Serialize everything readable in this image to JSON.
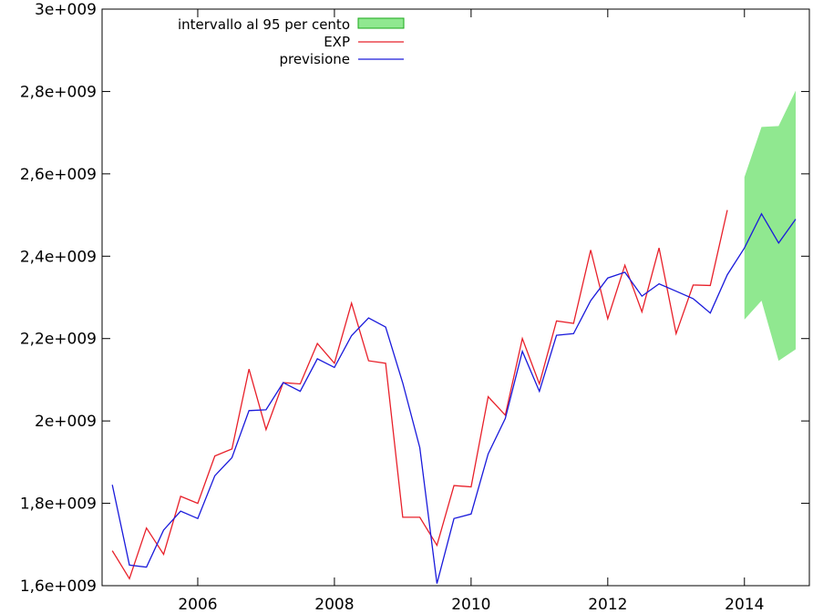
{
  "chart_data": {
    "type": "line",
    "title": "",
    "xlabel": "",
    "ylabel": "",
    "xlim": [
      2004.6,
      2014.95
    ],
    "ylim": [
      1600000000,
      3000000000
    ],
    "x_ticks": [
      2006,
      2008,
      2010,
      2012,
      2014
    ],
    "x_tick_labels": [
      "2006",
      "2008",
      "2010",
      "2012",
      "2014"
    ],
    "y_ticks": [
      1600000000,
      1800000000,
      2000000000,
      2200000000,
      2400000000,
      2600000000,
      2800000000,
      3000000000
    ],
    "y_tick_labels": [
      "1,6e+009",
      "1,8e+009",
      "2e+009",
      "2,2e+009",
      "2,4e+009",
      "2,6e+009",
      "2,8e+009",
      "3e+009"
    ],
    "grid": false,
    "legend_position": "top-left",
    "legend": {
      "interval_label": "intervallo al 95 per cento",
      "exp_label": "EXP",
      "forecast_label": "previsione"
    },
    "colors": {
      "exp": "#e8202a",
      "forecast": "#1a1adb",
      "interval_fill": "#90e890",
      "interval_stroke": "#1aa81a"
    },
    "series": [
      {
        "name": "EXP",
        "x": [
          2004.75,
          2005.0,
          2005.25,
          2005.5,
          2005.75,
          2006.0,
          2006.25,
          2006.5,
          2006.75,
          2007.0,
          2007.25,
          2007.5,
          2007.75,
          2008.0,
          2008.25,
          2008.5,
          2008.75,
          2009.0,
          2009.25,
          2009.5,
          2009.75,
          2010.0,
          2010.25,
          2010.5,
          2010.75,
          2011.0,
          2011.25,
          2011.5,
          2011.75,
          2012.0,
          2012.25,
          2012.5,
          2012.75,
          2013.0,
          2013.25,
          2013.5,
          2013.75
        ],
        "y": [
          1685000000,
          1617000000,
          1740000000,
          1676000000,
          1817000000,
          1800000000,
          1915000000,
          1932000000,
          2126000000,
          1979000000,
          2093000000,
          2090000000,
          2188000000,
          2140000000,
          2286000000,
          2146000000,
          2140000000,
          1766000000,
          1766000000,
          1698000000,
          1843000000,
          1840000000,
          2059000000,
          2014000000,
          2200000000,
          2090000000,
          2243000000,
          2237000000,
          2415000000,
          2248000000,
          2378000000,
          2265000000,
          2420000000,
          2212000000,
          2330000000,
          2329000000,
          2512000000
        ]
      },
      {
        "name": "previsione",
        "x": [
          2004.75,
          2005.0,
          2005.25,
          2005.5,
          2005.75,
          2006.0,
          2006.25,
          2006.5,
          2006.75,
          2007.0,
          2007.25,
          2007.5,
          2007.75,
          2008.0,
          2008.25,
          2008.5,
          2008.75,
          2009.0,
          2009.25,
          2009.5,
          2009.75,
          2010.0,
          2010.25,
          2010.5,
          2010.75,
          2011.0,
          2011.25,
          2011.5,
          2011.75,
          2012.0,
          2012.25,
          2012.5,
          2012.75,
          2013.0,
          2013.25,
          2013.5,
          2013.75,
          2014.0,
          2014.25,
          2014.5,
          2014.75
        ],
        "y": [
          1845000000,
          1650000000,
          1645000000,
          1735000000,
          1781000000,
          1763000000,
          1867000000,
          1911000000,
          2025000000,
          2027000000,
          2093000000,
          2072000000,
          2151000000,
          2130000000,
          2207000000,
          2250000000,
          2228000000,
          2092000000,
          1935000000,
          1605000000,
          1763000000,
          1774000000,
          1920000000,
          2006000000,
          2169000000,
          2072000000,
          2208000000,
          2212000000,
          2292000000,
          2347000000,
          2361000000,
          2303000000,
          2333000000,
          2315000000,
          2297000000,
          2262000000,
          2355000000,
          2420000000,
          2503000000,
          2432000000,
          2490000000
        ]
      }
    ],
    "interval": {
      "name": "intervallo al 95 per cento",
      "x": [
        2014.0,
        2014.25,
        2014.5,
        2014.75
      ],
      "upper": [
        2592000000,
        2714000000,
        2716000000,
        2802000000
      ],
      "lower": [
        2246000000,
        2292000000,
        2146000000,
        2174000000
      ]
    }
  }
}
